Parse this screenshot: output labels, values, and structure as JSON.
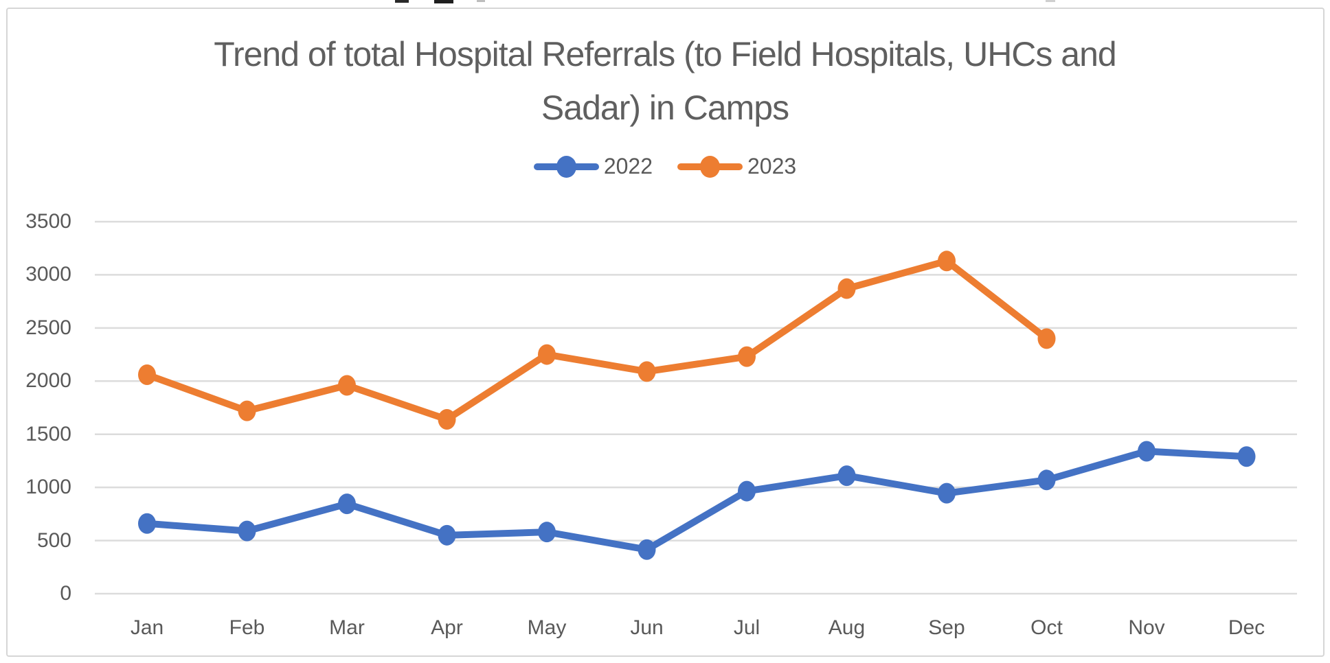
{
  "chart_data": {
    "type": "line",
    "title": "Trend of total Hospital Referrals (to Field Hospitals, UHCs and Sadar) in Camps",
    "title_lines": [
      "Trend of total Hospital Referrals (to Field Hospitals, UHCs and",
      "Sadar) in Camps"
    ],
    "categories": [
      "Jan",
      "Feb",
      "Mar",
      "Apr",
      "May",
      "Jun",
      "Jul",
      "Aug",
      "Sep",
      "Oct",
      "Nov",
      "Dec"
    ],
    "series": [
      {
        "name": "2022",
        "color": "#4472C4",
        "values": [
          660,
          590,
          845,
          550,
          580,
          415,
          965,
          1110,
          945,
          1070,
          1340,
          1290
        ]
      },
      {
        "name": "2023",
        "color": "#ED7D31",
        "values": [
          2060,
          1720,
          1960,
          1640,
          2250,
          2090,
          2230,
          2870,
          3130,
          2400
        ]
      }
    ],
    "y_ticks": [
      0,
      500,
      1000,
      1500,
      2000,
      2500,
      3000,
      3500
    ],
    "ylim": [
      0,
      3500
    ],
    "grid": true,
    "legend_position": "top",
    "text_color": "#595959",
    "grid_color": "#dcdcdc",
    "background_color": "#ffffff"
  }
}
